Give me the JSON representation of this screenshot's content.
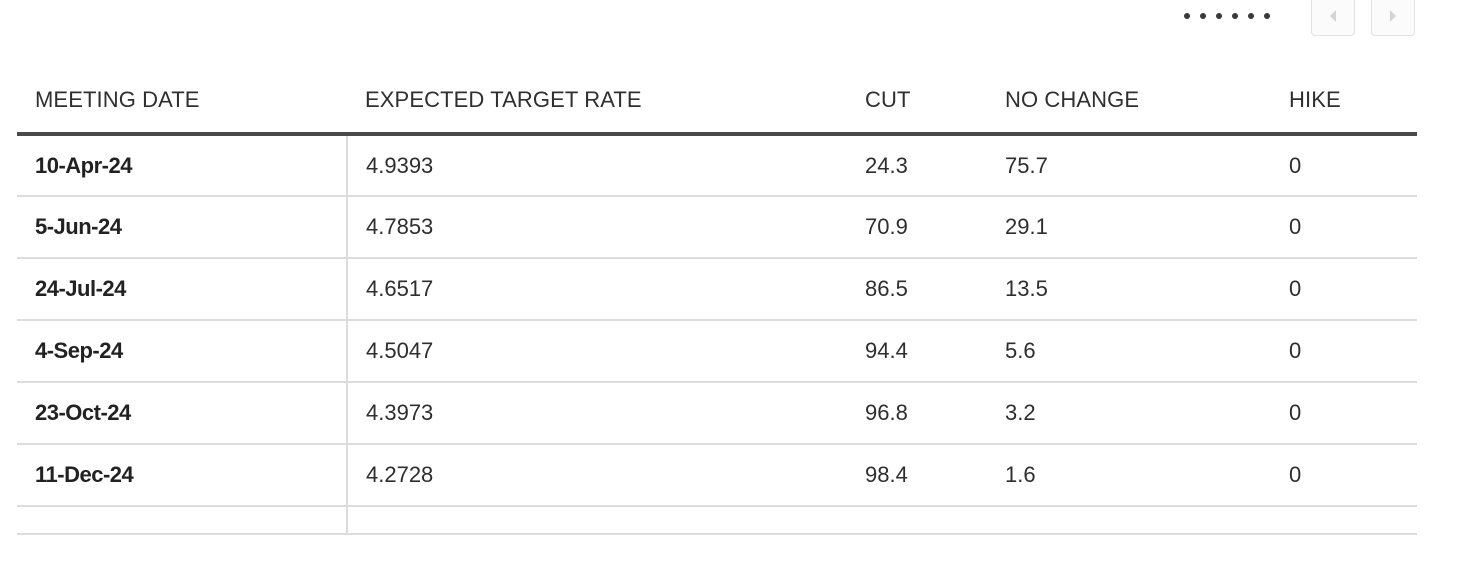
{
  "pager": {
    "dots": [
      "",
      "",
      "",
      "",
      "",
      ""
    ],
    "prev_icon": "chevron-left-icon",
    "next_icon": "chevron-right-icon"
  },
  "table": {
    "headers": [
      "MEETING DATE",
      "EXPECTED TARGET RATE",
      "CUT",
      "NO CHANGE",
      "HIKE"
    ],
    "rows": [
      {
        "date": "10-Apr-24",
        "rate": "4.9393",
        "cut": "24.3",
        "no_change": "75.7",
        "hike": "0"
      },
      {
        "date": "5-Jun-24",
        "rate": "4.7853",
        "cut": "70.9",
        "no_change": "29.1",
        "hike": "0"
      },
      {
        "date": "24-Jul-24",
        "rate": "4.6517",
        "cut": "86.5",
        "no_change": "13.5",
        "hike": "0"
      },
      {
        "date": "4-Sep-24",
        "rate": "4.5047",
        "cut": "94.4",
        "no_change": "5.6",
        "hike": "0"
      },
      {
        "date": "23-Oct-24",
        "rate": "4.3973",
        "cut": "96.8",
        "no_change": "3.2",
        "hike": "0"
      },
      {
        "date": "11-Dec-24",
        "rate": "4.2728",
        "cut": "98.4",
        "no_change": "1.6",
        "hike": "0"
      }
    ]
  },
  "colors": {
    "header_rule": "#4a4a4a",
    "row_rule": "#dcdcdc",
    "text": "#2e2e2e"
  }
}
